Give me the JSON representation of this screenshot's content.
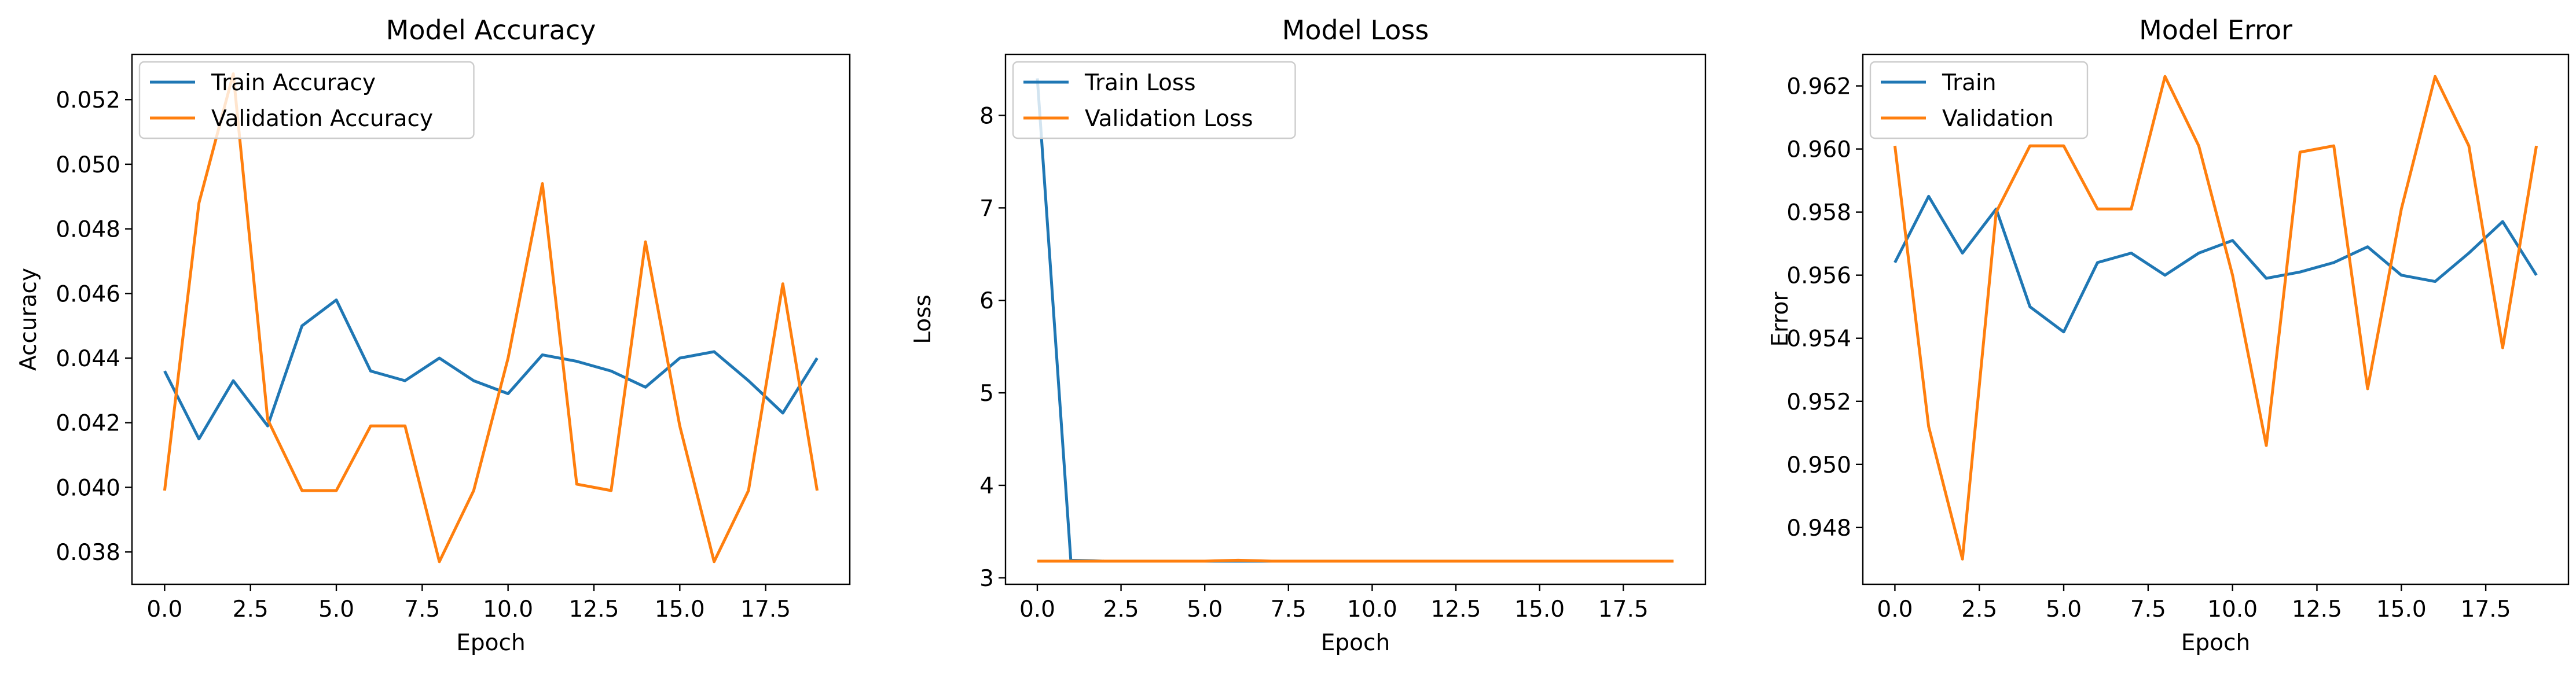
{
  "colors": {
    "train": "#1f77b4",
    "validation": "#ff7f0e"
  },
  "chart_data": [
    {
      "type": "line",
      "title": "Model Accuracy",
      "xlabel": "Epoch",
      "ylabel": "Accuracy",
      "legend_position": "upper-left",
      "grid": false,
      "xlim": [
        -0.95,
        19.95
      ],
      "ylim": [
        0.037,
        0.0534
      ],
      "xticks": [
        0,
        2.5,
        5,
        7.5,
        10,
        12.5,
        15,
        17.5
      ],
      "xtick_labels": [
        "0.0",
        "2.5",
        "5.0",
        "7.5",
        "10.0",
        "12.5",
        "15.0",
        "17.5"
      ],
      "yticks": [
        0.038,
        0.04,
        0.042,
        0.044,
        0.046,
        0.048,
        0.05,
        0.052
      ],
      "ytick_labels": [
        "0.038",
        "0.040",
        "0.042",
        "0.044",
        "0.046",
        "0.048",
        "0.050",
        "0.052"
      ],
      "x": [
        0,
        1,
        2,
        3,
        4,
        5,
        6,
        7,
        8,
        9,
        10,
        11,
        12,
        13,
        14,
        15,
        16,
        17,
        18,
        19
      ],
      "series": [
        {
          "name": "Train Accuracy",
          "color": "#1f77b4",
          "values": [
            0.0436,
            0.0415,
            0.0433,
            0.0419,
            0.045,
            0.0458,
            0.0436,
            0.0433,
            0.044,
            0.0433,
            0.0429,
            0.0441,
            0.0439,
            0.0436,
            0.0431,
            0.044,
            0.0442,
            0.0433,
            0.0423,
            0.044
          ]
        },
        {
          "name": "Validation Accuracy",
          "color": "#ff7f0e",
          "values": [
            0.0399,
            0.0488,
            0.0528,
            0.0421,
            0.0399,
            0.0399,
            0.0419,
            0.0419,
            0.0377,
            0.0399,
            0.044,
            0.0494,
            0.0401,
            0.0399,
            0.0476,
            0.0419,
            0.0377,
            0.0399,
            0.0463,
            0.0399
          ]
        }
      ]
    },
    {
      "type": "line",
      "title": "Model Loss",
      "xlabel": "Epoch",
      "ylabel": "Loss",
      "legend_position": "upper-left",
      "grid": false,
      "xlim": [
        -0.95,
        19.95
      ],
      "ylim": [
        2.93,
        8.66
      ],
      "xticks": [
        0,
        2.5,
        5,
        7.5,
        10,
        12.5,
        15,
        17.5
      ],
      "xtick_labels": [
        "0.0",
        "2.5",
        "5.0",
        "7.5",
        "10.0",
        "12.5",
        "15.0",
        "17.5"
      ],
      "yticks": [
        3,
        4,
        5,
        6,
        7,
        8
      ],
      "ytick_labels": [
        "3",
        "4",
        "5",
        "6",
        "7",
        "8"
      ],
      "x": [
        0,
        1,
        2,
        3,
        4,
        5,
        6,
        7,
        8,
        9,
        10,
        11,
        12,
        13,
        14,
        15,
        16,
        17,
        18,
        19
      ],
      "series": [
        {
          "name": "Train Loss",
          "color": "#1f77b4",
          "values": [
            8.4,
            3.19,
            3.18,
            3.18,
            3.18,
            3.18,
            3.18,
            3.18,
            3.18,
            3.18,
            3.18,
            3.18,
            3.18,
            3.18,
            3.18,
            3.18,
            3.18,
            3.18,
            3.18,
            3.18
          ]
        },
        {
          "name": "Validation Loss",
          "color": "#ff7f0e",
          "values": [
            3.18,
            3.18,
            3.18,
            3.18,
            3.18,
            3.18,
            3.19,
            3.18,
            3.18,
            3.18,
            3.18,
            3.18,
            3.18,
            3.18,
            3.18,
            3.18,
            3.18,
            3.18,
            3.18,
            3.18
          ]
        }
      ]
    },
    {
      "type": "line",
      "title": "Model Error",
      "xlabel": "Epoch",
      "ylabel": "Error",
      "legend_position": "upper-left",
      "grid": false,
      "xlim": [
        -0.95,
        19.95
      ],
      "ylim": [
        0.9462,
        0.963
      ],
      "xticks": [
        0,
        2.5,
        5,
        7.5,
        10,
        12.5,
        15,
        17.5
      ],
      "xtick_labels": [
        "0.0",
        "2.5",
        "5.0",
        "7.5",
        "10.0",
        "12.5",
        "15.0",
        "17.5"
      ],
      "yticks": [
        0.948,
        0.95,
        0.952,
        0.954,
        0.956,
        0.958,
        0.96,
        0.962
      ],
      "ytick_labels": [
        "0.948",
        "0.950",
        "0.952",
        "0.954",
        "0.956",
        "0.958",
        "0.960",
        "0.962"
      ],
      "x": [
        0,
        1,
        2,
        3,
        4,
        5,
        6,
        7,
        8,
        9,
        10,
        11,
        12,
        13,
        14,
        15,
        16,
        17,
        18,
        19
      ],
      "series": [
        {
          "name": "Train",
          "color": "#1f77b4",
          "values": [
            0.9564,
            0.9585,
            0.9567,
            0.9581,
            0.955,
            0.9542,
            0.9564,
            0.9567,
            0.956,
            0.9567,
            0.9571,
            0.9559,
            0.9561,
            0.9564,
            0.9569,
            0.956,
            0.9558,
            0.9567,
            0.9577,
            0.956
          ]
        },
        {
          "name": "Validation",
          "color": "#ff7f0e",
          "values": [
            0.9601,
            0.9512,
            0.947,
            0.958,
            0.9601,
            0.9601,
            0.9581,
            0.9581,
            0.9623,
            0.9601,
            0.956,
            0.9506,
            0.9599,
            0.9601,
            0.9524,
            0.9581,
            0.9623,
            0.9601,
            0.9537,
            0.9601
          ]
        }
      ]
    }
  ]
}
